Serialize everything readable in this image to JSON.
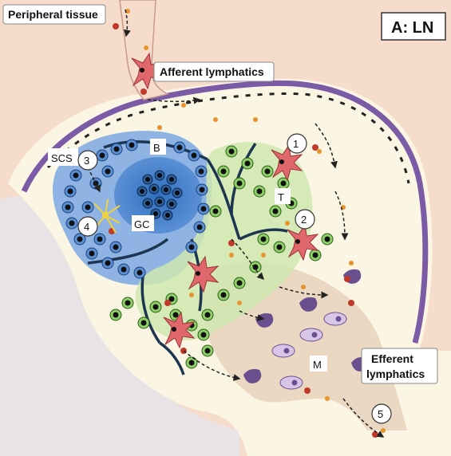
{
  "panel_label": "A: LN",
  "labels": {
    "peripheral_tissue": "Peripheral tissue",
    "afferent_lymphatics": "Afferent lymphatics",
    "efferent_lymphatics_line1": "Efferent",
    "efferent_lymphatics_line2": "lymphatics",
    "scs": "SCS",
    "b_zone": "B",
    "t_zone": "T",
    "germinal_center": "GC",
    "medulla": "M"
  },
  "step_numbers": [
    "1",
    "2",
    "3",
    "4",
    "5"
  ],
  "colors": {
    "tissue": "#f6dccb",
    "capsule": "#7b5aa6",
    "lymph_space": "#fbf6e3",
    "b_follicle": "#6d9bd6",
    "germinal_center": "#3f7fc8",
    "t_zone": "#c7e3a6",
    "medulla": "#ead8c2",
    "b_cell": "#5b8fd3",
    "t_cell": "#8fcf6a",
    "dendritic_cell": "#e0676b",
    "macrophage": "#6a4f8e",
    "plasma_cell": "#c9b3de"
  }
}
